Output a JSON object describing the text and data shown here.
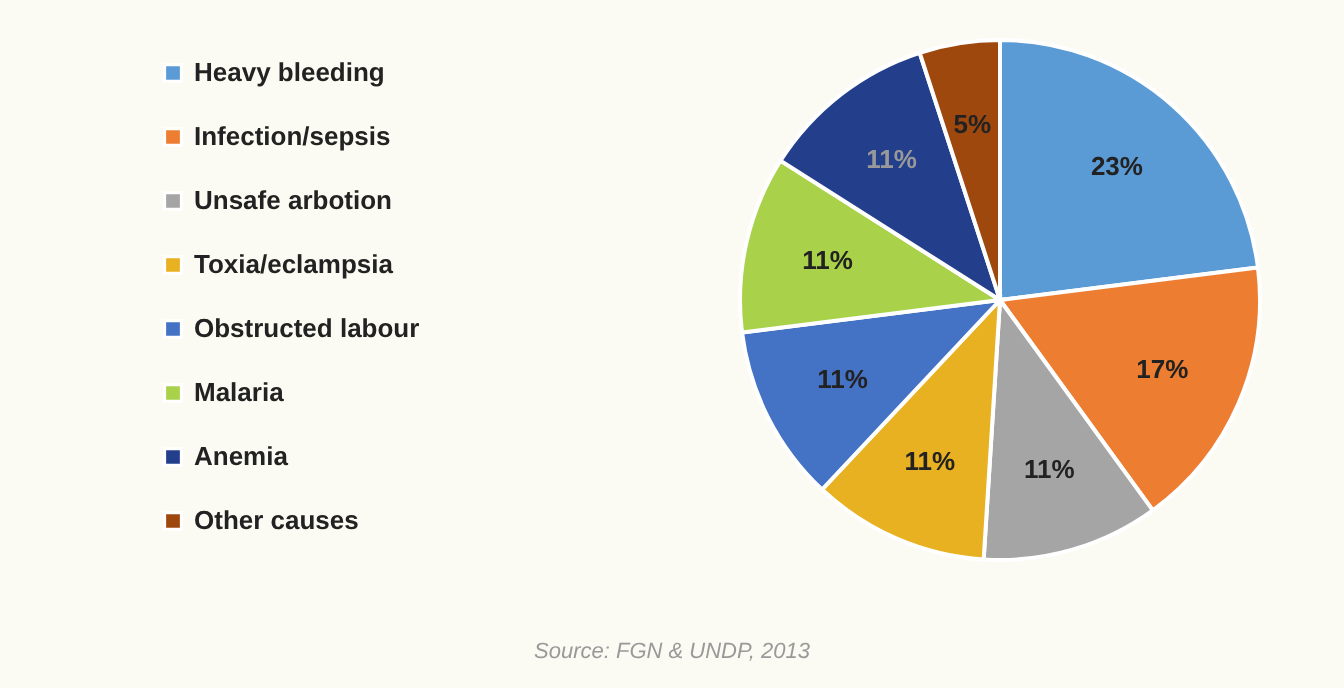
{
  "chart_data": {
    "type": "pie",
    "categories": [
      "Heavy bleeding",
      "Infection/sepsis",
      "Unsafe arbotion",
      "Toxia/eclampsia",
      "Obstructed labour",
      "Malaria",
      "Anemia",
      "Other causes"
    ],
    "values": [
      23,
      17,
      11,
      11,
      11,
      11,
      11,
      5
    ],
    "colors": [
      "#5b9bd5",
      "#ed7d31",
      "#a5a5a5",
      "#e8b121",
      "#4472c4",
      "#a9d14a",
      "#233f8c",
      "#9e480e"
    ],
    "value_labels": [
      "23%",
      "17%",
      "11%",
      "11%",
      "11%",
      "11%",
      "11%",
      "5%"
    ],
    "legend": "left",
    "annotations": [
      "Source: FGN & UNDP, 2013"
    ]
  }
}
